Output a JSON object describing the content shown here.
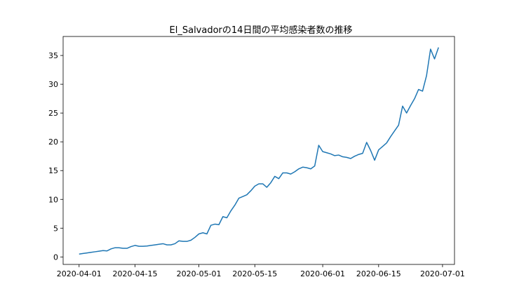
{
  "chart_data": {
    "type": "line",
    "title": "El_Salvadorの14日間の平均感染者数の推移",
    "xlabel": "",
    "ylabel": "",
    "x_start": "2020-04-01",
    "x_ticks": [
      "2020-04-01",
      "2020-04-15",
      "2020-05-01",
      "2020-05-15",
      "2020-06-01",
      "2020-06-15",
      "2020-07-01"
    ],
    "y_ticks": [
      0,
      5,
      10,
      15,
      20,
      25,
      30,
      35
    ],
    "xlim": [
      "2020-03-28",
      "2020-07-04"
    ],
    "ylim": [
      -1.3,
      38.3
    ],
    "grid": false,
    "line_color": "#1f77b4",
    "series": [
      {
        "name": "",
        "values": [
          0.5,
          0.6,
          0.7,
          0.8,
          0.9,
          1.0,
          1.1,
          1.05,
          1.4,
          1.6,
          1.6,
          1.5,
          1.5,
          1.8,
          2.0,
          1.85,
          1.85,
          1.9,
          2.0,
          2.1,
          2.2,
          2.3,
          2.1,
          2.1,
          2.3,
          2.8,
          2.7,
          2.7,
          2.9,
          3.4,
          4.0,
          4.2,
          4.0,
          5.5,
          5.7,
          5.6,
          7.0,
          6.8,
          8.0,
          9.0,
          10.2,
          10.5,
          10.8,
          11.5,
          12.3,
          12.7,
          12.7,
          12.1,
          12.9,
          14.0,
          13.6,
          14.6,
          14.6,
          14.4,
          14.8,
          15.3,
          15.6,
          15.5,
          15.3,
          15.8,
          19.4,
          18.3,
          18.1,
          17.9,
          17.6,
          17.7,
          17.4,
          17.3,
          17.1,
          17.5,
          17.8,
          18.0,
          19.9,
          18.5,
          16.8,
          18.6,
          19.2,
          19.8,
          20.9,
          21.9,
          22.9,
          26.2,
          25.0,
          26.3,
          27.5,
          29.1,
          28.8,
          31.5,
          36.1,
          34.4,
          36.4
        ]
      }
    ]
  }
}
